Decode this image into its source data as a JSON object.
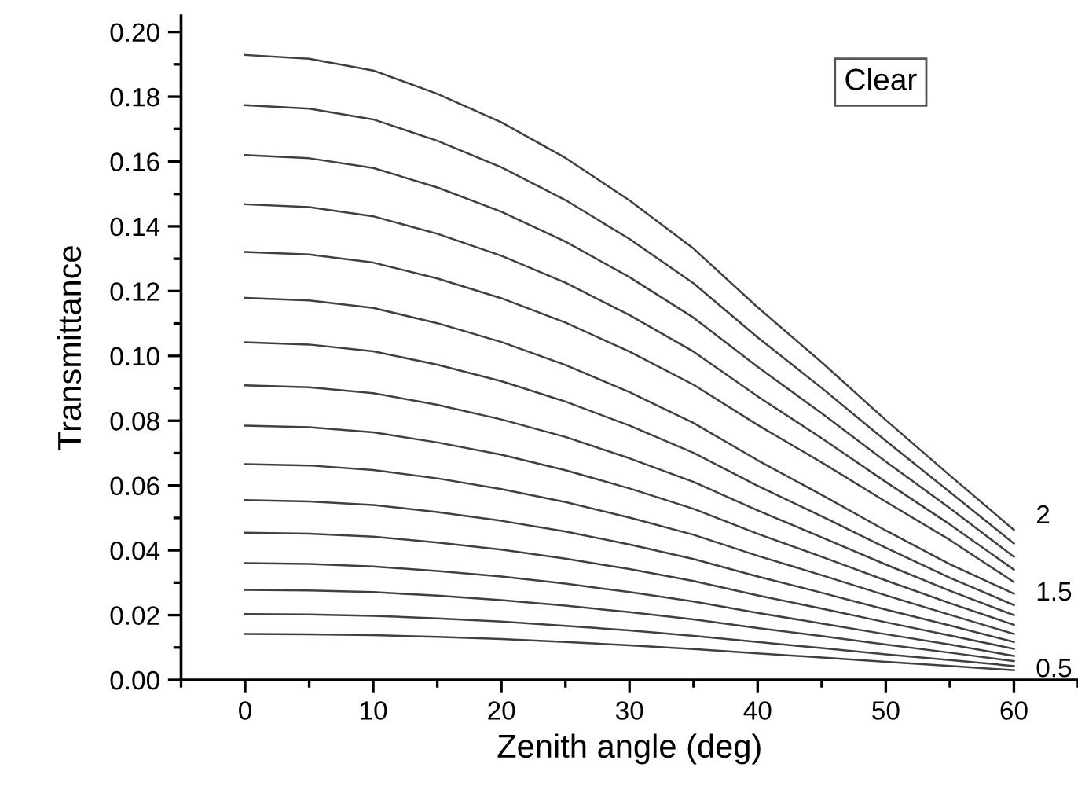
{
  "chart_data": {
    "type": "line",
    "xlabel": "Zenith angle (deg)",
    "ylabel": "Transmittance",
    "x": [
      0,
      5,
      10,
      15,
      20,
      25,
      30,
      35,
      40,
      45,
      50,
      55,
      60
    ],
    "xlim": [
      -5,
      65
    ],
    "xticks": [
      0,
      10,
      20,
      30,
      40,
      50,
      60
    ],
    "ylim": [
      0,
      0.205
    ],
    "yticks": [
      {
        "value": 0,
        "label": "0.00"
      },
      {
        "value": 0.02,
        "label": "0.02"
      },
      {
        "value": 0.04,
        "label": "0.04"
      },
      {
        "value": 0.06,
        "label": "0.06"
      },
      {
        "value": 0.08,
        "label": "0.08"
      },
      {
        "value": 0.1,
        "label": "0.10"
      },
      {
        "value": 0.12,
        "label": "0.12"
      },
      {
        "value": 0.14,
        "label": "0.14"
      },
      {
        "value": 0.16,
        "label": "0.16"
      },
      {
        "value": 0.18,
        "label": "0.18"
      },
      {
        "value": 0.2,
        "label": "0.20"
      }
    ],
    "grid": false,
    "legend": false,
    "marker": "none",
    "line_style": "solid",
    "annotations": [
      "Clear"
    ],
    "series": [
      {
        "name": "2",
        "color": "#404040",
        "values": [
          0.1929,
          0.1917,
          0.1881,
          0.1809,
          0.1721,
          0.1611,
          0.148,
          0.1331,
          0.115,
          0.098,
          0.0802,
          0.0631,
          0.0463
        ]
      },
      {
        "color": "#404040",
        "values": [
          0.1774,
          0.1763,
          0.173,
          0.1664,
          0.1582,
          0.1481,
          0.1361,
          0.1224,
          0.1057,
          0.0901,
          0.0738,
          0.058,
          0.0421
        ]
      },
      {
        "color": "#404040",
        "values": [
          0.162,
          0.161,
          0.158,
          0.152,
          0.1445,
          0.1353,
          0.1243,
          0.1118,
          0.0966,
          0.0823,
          0.0674,
          0.053,
          0.038
        ]
      },
      {
        "color": "#404040",
        "values": [
          0.1468,
          0.1459,
          0.1431,
          0.1377,
          0.1309,
          0.1226,
          0.1126,
          0.1013,
          0.0875,
          0.0746,
          0.0611,
          0.048,
          0.034
        ]
      },
      {
        "color": "#404040",
        "values": [
          0.1321,
          0.1313,
          0.1288,
          0.1239,
          0.1178,
          0.1103,
          0.1013,
          0.0911,
          0.0787,
          0.0671,
          0.055,
          0.0432,
          0.0302
        ]
      },
      {
        "name": "1.5",
        "color": "#404040",
        "values": [
          0.1179,
          0.1171,
          0.1148,
          0.1101,
          0.1043,
          0.0972,
          0.0888,
          0.0793,
          0.0678,
          0.0571,
          0.0461,
          0.0357,
          0.0266
        ]
      },
      {
        "color": "#404040",
        "values": [
          0.1042,
          0.1035,
          0.1014,
          0.0973,
          0.0922,
          0.0859,
          0.0785,
          0.0701,
          0.0599,
          0.0505,
          0.0408,
          0.0315,
          0.0231
        ]
      },
      {
        "color": "#404040",
        "values": [
          0.0909,
          0.0903,
          0.0885,
          0.0849,
          0.0804,
          0.075,
          0.0684,
          0.0611,
          0.0523,
          0.044,
          0.0356,
          0.0275,
          0.02
        ]
      },
      {
        "color": "#404040",
        "values": [
          0.0785,
          0.078,
          0.0764,
          0.0733,
          0.0695,
          0.0647,
          0.0591,
          0.0528,
          0.0451,
          0.038,
          0.0307,
          0.0237,
          0.017
        ]
      },
      {
        "color": "#404040",
        "values": [
          0.0666,
          0.0662,
          0.0648,
          0.0622,
          0.0589,
          0.0549,
          0.0501,
          0.0448,
          0.0383,
          0.0323,
          0.0261,
          0.0201,
          0.0142
        ]
      },
      {
        "color": "#404040",
        "values": [
          0.0555,
          0.0551,
          0.054,
          0.0518,
          0.0491,
          0.0458,
          0.0418,
          0.0373,
          0.0319,
          0.0269,
          0.0217,
          0.0168,
          0.0117
        ]
      },
      {
        "color": "#404040",
        "values": [
          0.0454,
          0.0451,
          0.0442,
          0.0424,
          0.0402,
          0.0374,
          0.0342,
          0.0305,
          0.0261,
          0.022,
          0.0178,
          0.0137,
          0.0096
        ]
      },
      {
        "color": "#404040",
        "values": [
          0.036,
          0.0358,
          0.035,
          0.0336,
          0.0319,
          0.0297,
          0.0271,
          0.0242,
          0.0207,
          0.0174,
          0.0141,
          0.0109,
          0.0074
        ]
      },
      {
        "color": "#404040",
        "values": [
          0.0278,
          0.0276,
          0.0271,
          0.026,
          0.0246,
          0.0229,
          0.0209,
          0.0187,
          0.016,
          0.0135,
          0.0109,
          0.0084,
          0.0058
        ]
      },
      {
        "color": "#404040",
        "values": [
          0.0203,
          0.0202,
          0.0198,
          0.019,
          0.018,
          0.0167,
          0.0153,
          0.0136,
          0.0117,
          0.0098,
          0.0079,
          0.0061,
          0.0043
        ]
      },
      {
        "name": "0.5",
        "color": "#404040",
        "values": [
          0.0142,
          0.0141,
          0.0138,
          0.0133,
          0.0126,
          0.0117,
          0.0107,
          0.0095,
          0.0082,
          0.0069,
          0.0056,
          0.0043,
          0.003
        ]
      }
    ]
  }
}
